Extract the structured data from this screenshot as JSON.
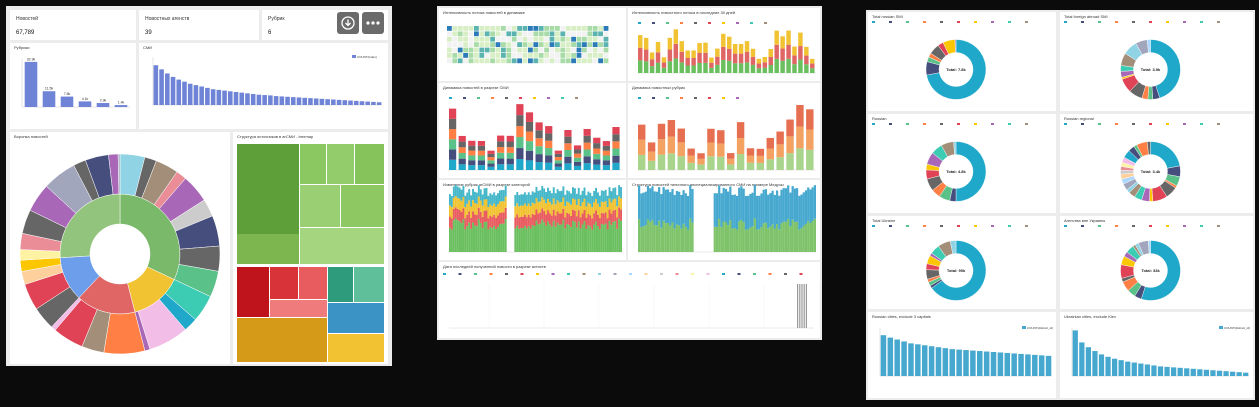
{
  "panel1": {
    "kpis": [
      {
        "label": "Новостей",
        "value": "67,789"
      },
      {
        "label": "Новостных агенств",
        "value": "39"
      },
      {
        "label": "Рубрик",
        "value": "6"
      }
    ],
    "rubrics_title": "Рубрики",
    "smi_title": "СМИ",
    "sunburst_title": "Воронка новостей",
    "treemap_title": "Структура источников в агСМИ - treemap",
    "download_icon": "download-icon",
    "more_icon": "more-horizontal-icon"
  },
  "panel2": {
    "titles": [
      "Интенсивность потока новостей в динамике",
      "Интенсивность новостного потока в последние 30 дней",
      "Динамика новостей в разрезе СМИ",
      "Динамика новостных рубрик",
      "Изменение рубрик агСМИ в разрезе категорий",
      "Структура новостей типичного неспециализированного СМИ на примере Медузы",
      "Дата последней полученной новости в разрезе агенств"
    ]
  },
  "panel3": {
    "titles": [
      "Total russian SMI",
      "Total foreign abroad SMI",
      "Russian",
      "Russian regional",
      "Total Ukraine",
      "Агенства вне Украины",
      "Russian cities, exclude 3 capitals",
      "Ukrainian cities, exclude Kiev"
    ],
    "donut_center": [
      "Total: 7.8k",
      "Total: 3.9k",
      "Total: 4.8k",
      "Total: 3.4k",
      "Total: 90k",
      "Total: 33k"
    ]
  },
  "chart_data": [
    {
      "type": "bar",
      "id": "rubrics",
      "categories": [
        "",
        "",
        "",
        "",
        "",
        ""
      ],
      "values": [
        32.9,
        11.5,
        7.6,
        4.1,
        2.9,
        1.4
      ],
      "data_labels": [
        "32.9k",
        "11.5k",
        "7.6k",
        "4.1k",
        "2.9k",
        "1.4k"
      ],
      "ylim": [
        0,
        35
      ]
    },
    {
      "type": "bar",
      "id": "smi",
      "legend": [
        "COUNT(index)"
      ],
      "values": [
        58,
        52,
        46,
        41,
        37,
        34,
        31,
        29,
        27,
        25,
        23,
        22,
        21,
        20,
        19,
        18,
        17,
        16,
        15,
        14.5,
        14,
        13,
        12.5,
        12,
        11.5,
        11,
        10.5,
        10,
        9.5,
        9,
        8.5,
        8,
        7.5,
        7,
        6.5,
        6,
        5.5,
        5,
        4.5,
        4
      ],
      "ylim": [
        0,
        70
      ]
    },
    {
      "type": "bar",
      "id": "russian-cities",
      "legend": [
        "COUNT(distinct_id)"
      ],
      "values": [
        85,
        80,
        76,
        72,
        68,
        66,
        64,
        62,
        60,
        58,
        56,
        55,
        54,
        53,
        52,
        51,
        50,
        49,
        48,
        47,
        46,
        45,
        44,
        43,
        42
      ],
      "ylim": [
        0,
        100
      ]
    },
    {
      "type": "bar",
      "id": "ukrainian-cities",
      "legend": [
        "COUNT(distinct_id)"
      ],
      "values": [
        95,
        70,
        60,
        52,
        45,
        40,
        36,
        33,
        30,
        28,
        26,
        24,
        22,
        20,
        19,
        18,
        17,
        16,
        15,
        14,
        13,
        12,
        11,
        10,
        9,
        8,
        7
      ],
      "ylim": [
        0,
        100
      ]
    }
  ],
  "colors": {
    "blue": "#6f84d6",
    "palette": [
      "#1fa8c9",
      "#454e7c",
      "#5ac189",
      "#ff7f44",
      "#666666",
      "#e04355",
      "#fcc700",
      "#a868b7",
      "#3cccb4",
      "#a38f79",
      "#8fd3e4",
      "#a1a6bd",
      "#acd7ff",
      "#fed19c",
      "#cccccc",
      "#ea8d97",
      "#fff3a3",
      "#f2bde6"
    ]
  }
}
